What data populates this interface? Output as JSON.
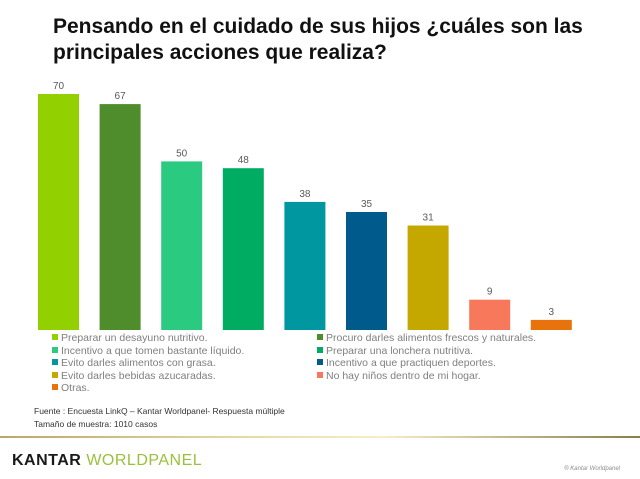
{
  "title": "Pensando en el cuidado de sus hijos ¿cuáles son las principales acciones que realiza?",
  "chart_data": {
    "type": "bar",
    "title": "Pensando en el cuidado de sus hijos ¿cuáles son las principales acciones que realiza?",
    "xlabel": "",
    "ylabel": "",
    "ylim": [
      0,
      70
    ],
    "grid": false,
    "legend_position": "bottom",
    "categories": [
      "Preparar un desayuno nutritivo.",
      "Procuro darles alimentos frescos y naturales.",
      "Incentivo a que tomen bastante líquido.",
      "Preparar una lonchera nutritiva.",
      "Evito darles alimentos con grasa.",
      "Incentivo a que practiquen deportes.",
      "Evito darles bebidas azucaradas.",
      "No hay niños dentro de mi hogar.",
      "Otras."
    ],
    "values": [
      70,
      67,
      50,
      48,
      38,
      35,
      31,
      9,
      3
    ],
    "colors": [
      "#92d000",
      "#4e8c2c",
      "#2acb80",
      "#00ac62",
      "#0097a0",
      "#005b8c",
      "#c4a800",
      "#f7785a",
      "#e8720c"
    ]
  },
  "legend_layout": [
    [
      0,
      1
    ],
    [
      2,
      3
    ],
    [
      4,
      5
    ],
    [
      6,
      7
    ],
    [
      8
    ]
  ],
  "source": {
    "line1": "Fuente : Encuesta LinkQ – Kantar Worldpanel- Respuesta múltiple",
    "line2": "Tamaño de muestra: 1010 casos"
  },
  "footer": {
    "logo_part1": "KANTAR ",
    "logo_part2": "WORLDPANEL",
    "copyright": "® Kantar Worldpanel"
  }
}
